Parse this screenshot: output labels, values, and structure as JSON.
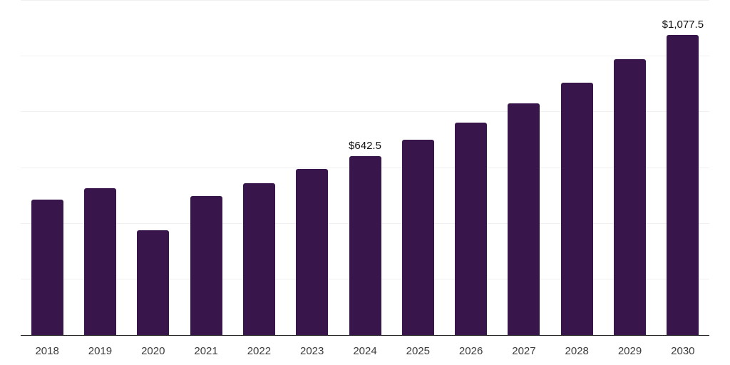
{
  "page": {
    "background": "#ffffff"
  },
  "chart_data": {
    "type": "bar",
    "title": "",
    "xlabel": "",
    "ylabel": "",
    "categories": [
      "2018",
      "2019",
      "2020",
      "2021",
      "2022",
      "2023",
      "2024",
      "2025",
      "2026",
      "2027",
      "2028",
      "2029",
      "2030"
    ],
    "values": [
      485,
      527.5,
      375,
      500,
      545,
      595,
      642.5,
      700,
      762.5,
      832.5,
      905,
      990,
      1077.5
    ],
    "point_labels": [
      "",
      "",
      "",
      "",
      "",
      "",
      "$642.5",
      "",
      "",
      "",
      "",
      "",
      "$1,077.5"
    ],
    "ylim": [
      0,
      1200
    ],
    "grid_step": 200,
    "grid": true,
    "legend": false,
    "colors": {
      "bar": "#38164c",
      "grid": "#f0f0f0",
      "axis": "#222222",
      "tick_label": "#3c3c3c",
      "data_label": "#111111"
    }
  }
}
